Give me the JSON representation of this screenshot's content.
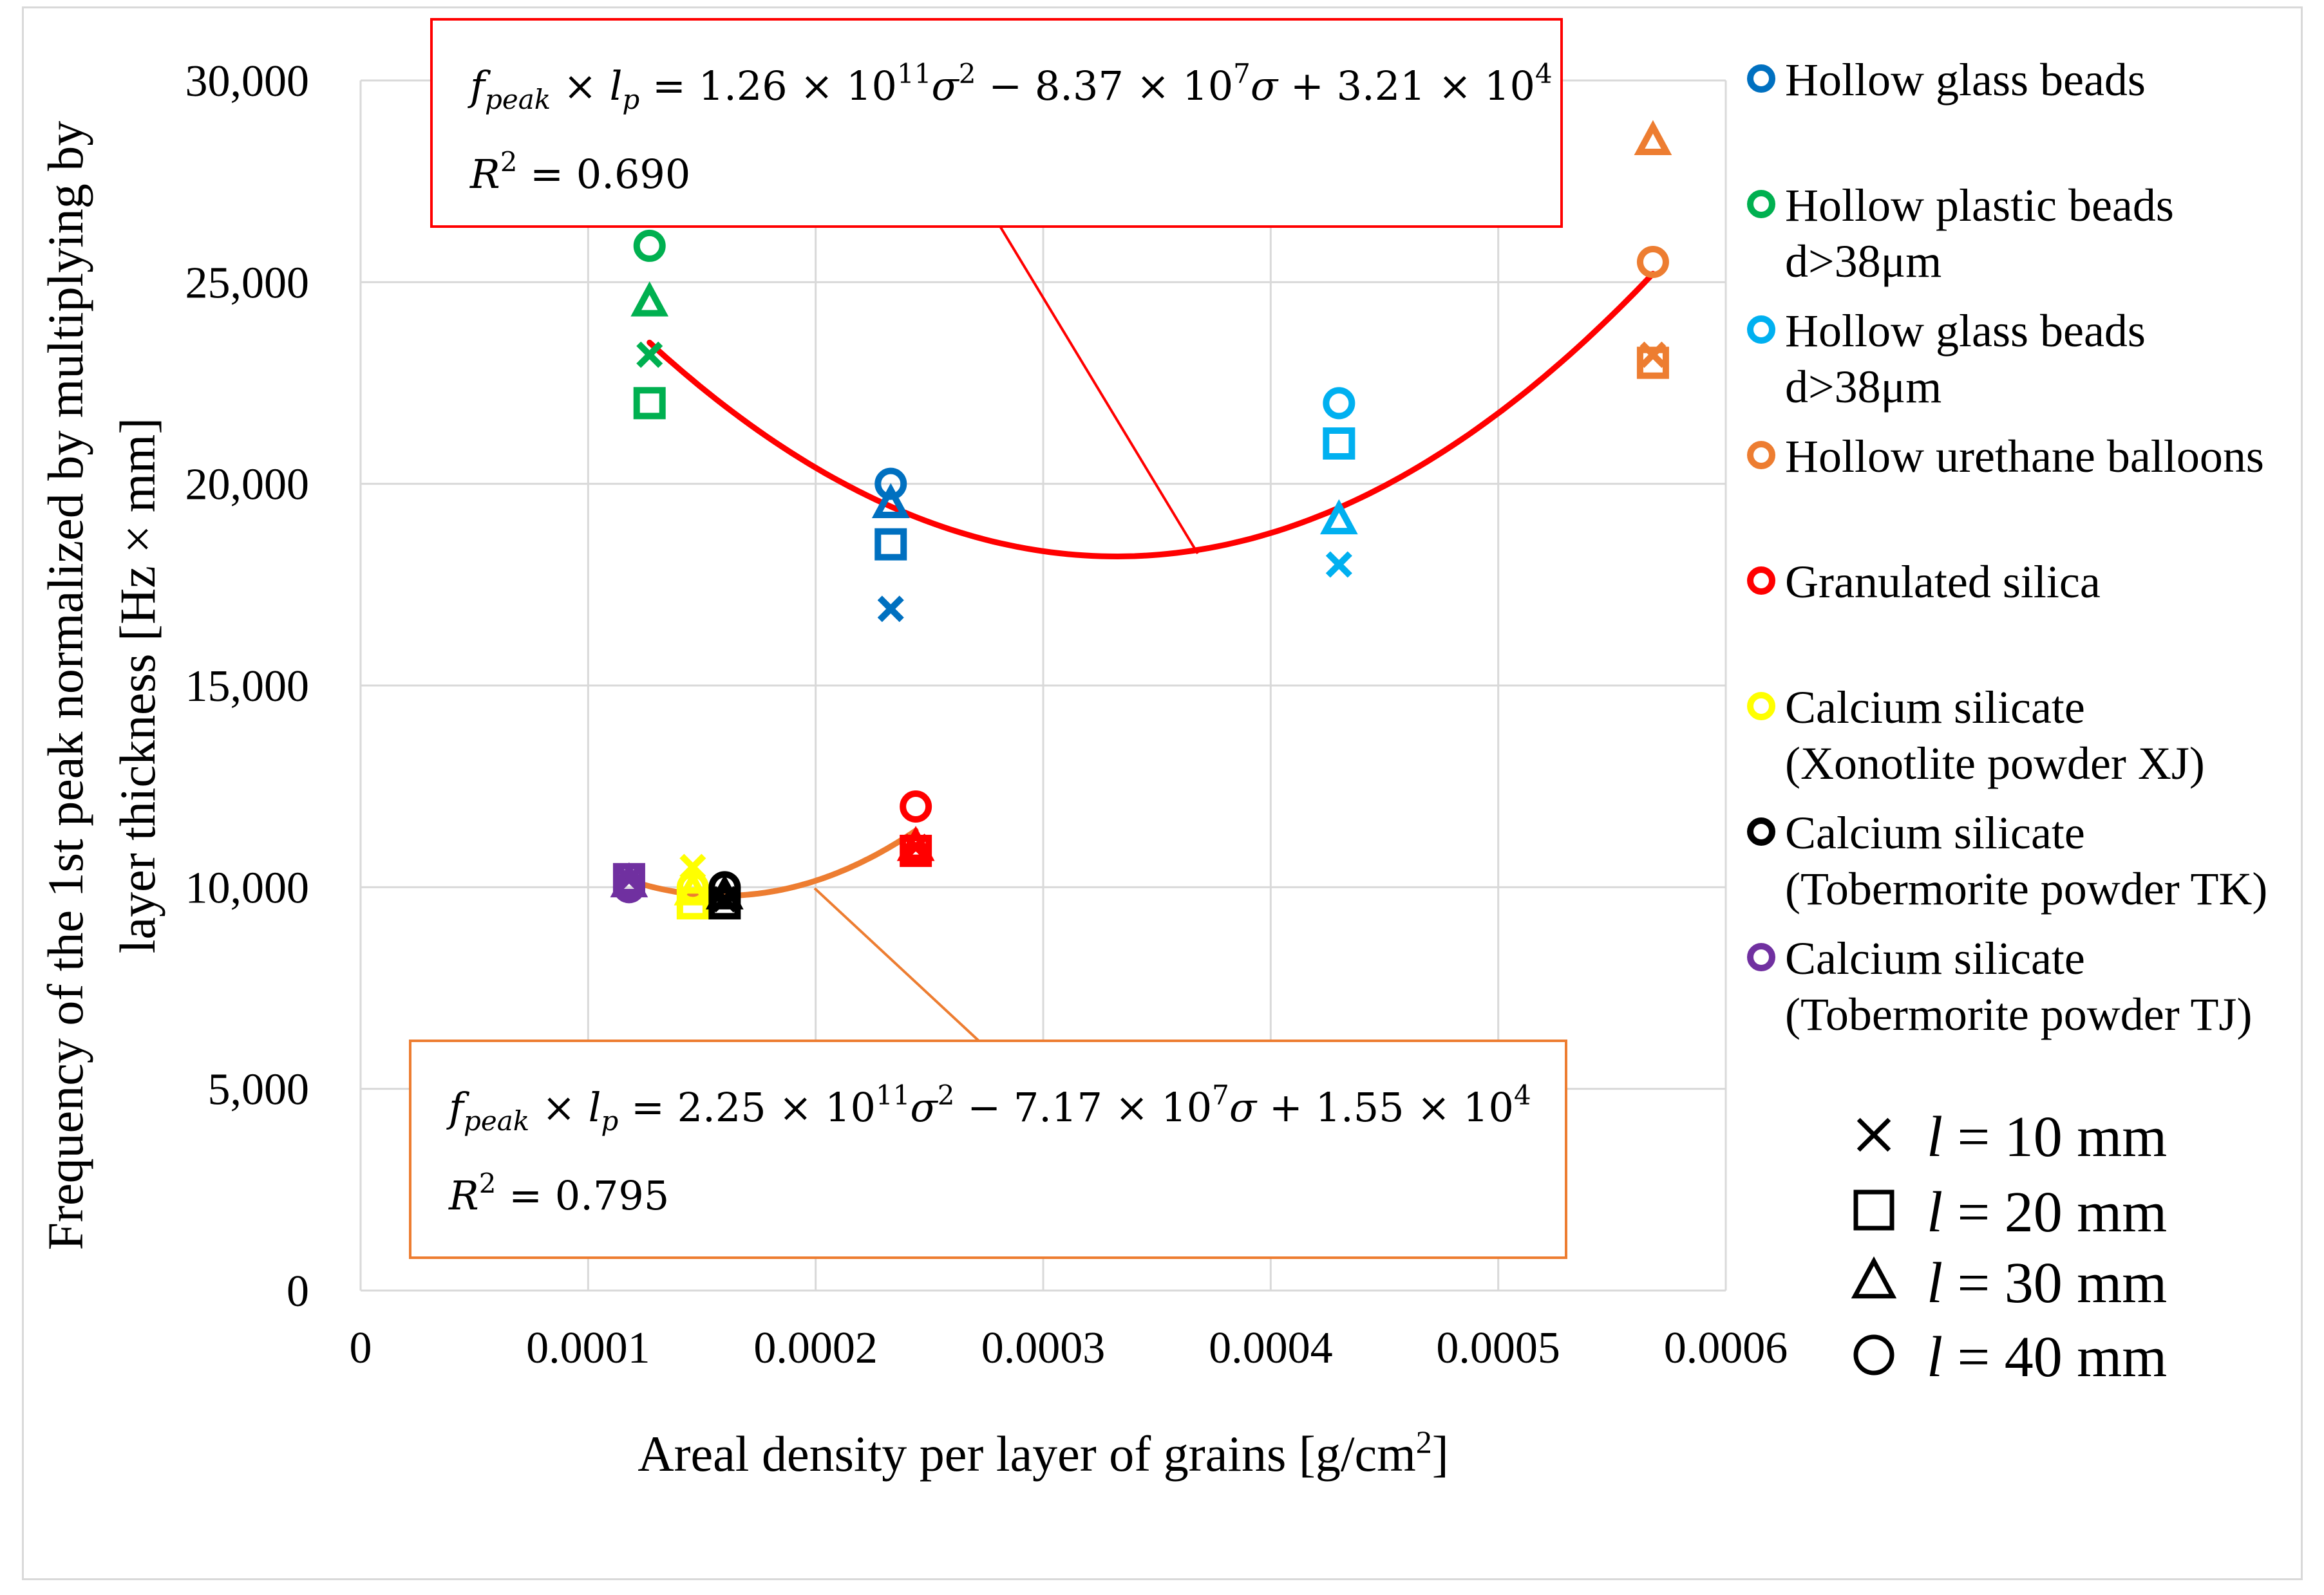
{
  "chart_data": {
    "type": "scatter",
    "title": "",
    "xlabel": "Areal density per layer of grains [g/cm²]",
    "xlabel_parts": {
      "text": "Areal density per layer of grains [g/cm",
      "sup": "2",
      "end": "]"
    },
    "ylabel_line1": "Frequency of the 1st peak normalized by multiplying by",
    "ylabel_line2": "layer thickness [Hz × mm]",
    "xlim": [
      0,
      0.0006
    ],
    "ylim": [
      0,
      30000
    ],
    "x_ticks": [
      0,
      0.0001,
      0.0002,
      0.0003,
      0.0004,
      0.0005,
      0.0006
    ],
    "x_tick_labels": [
      "0",
      "0.0001",
      "0.0002",
      "0.0003",
      "0.0004",
      "0.0005",
      "0.0006"
    ],
    "y_ticks": [
      0,
      5000,
      10000,
      15000,
      20000,
      25000,
      30000
    ],
    "y_tick_labels": [
      "0",
      "5,000",
      "10,000",
      "15,000",
      "20,000",
      "25,000",
      "30,000"
    ],
    "grid": true,
    "legend_position": "right",
    "series": [
      {
        "name": "Hollow glass beads",
        "label_lines": [
          "Hollow glass beads"
        ],
        "color": "#0070C0",
        "points": [
          {
            "x": 0.000233,
            "y": 16900,
            "marker": "x"
          },
          {
            "x": 0.000233,
            "y": 18500,
            "marker": "square"
          },
          {
            "x": 0.000233,
            "y": 19500,
            "marker": "triangle"
          },
          {
            "x": 0.000233,
            "y": 20000,
            "marker": "circle"
          }
        ]
      },
      {
        "name": "Hollow plastic beads d>38μm",
        "label_lines": [
          "Hollow plastic beads",
          "d>38μm"
        ],
        "color": "#00B050",
        "points": [
          {
            "x": 0.000127,
            "y": 23200,
            "marker": "x"
          },
          {
            "x": 0.000127,
            "y": 22000,
            "marker": "square"
          },
          {
            "x": 0.000127,
            "y": 24500,
            "marker": "triangle"
          },
          {
            "x": 0.000127,
            "y": 25900,
            "marker": "circle"
          }
        ]
      },
      {
        "name": "Hollow glass beads d>38μm",
        "label_lines": [
          "Hollow glass beads",
          "d>38μm"
        ],
        "color": "#00B0F0",
        "points": [
          {
            "x": 0.00043,
            "y": 18000,
            "marker": "x"
          },
          {
            "x": 0.00043,
            "y": 21000,
            "marker": "square"
          },
          {
            "x": 0.00043,
            "y": 19100,
            "marker": "triangle"
          },
          {
            "x": 0.00043,
            "y": 22000,
            "marker": "circle"
          }
        ]
      },
      {
        "name": "Hollow urethane balloons",
        "label_lines": [
          "Hollow urethane balloons"
        ],
        "color": "#ED7D31",
        "points": [
          {
            "x": 0.000568,
            "y": 23200,
            "marker": "x"
          },
          {
            "x": 0.000568,
            "y": 23000,
            "marker": "square"
          },
          {
            "x": 0.000568,
            "y": 28500,
            "marker": "triangle"
          },
          {
            "x": 0.000568,
            "y": 25500,
            "marker": "circle"
          }
        ]
      },
      {
        "name": "Granulated silica",
        "label_lines": [
          "Granulated silica"
        ],
        "color": "#FF0000",
        "points": [
          {
            "x": 0.000244,
            "y": 11000,
            "marker": "x"
          },
          {
            "x": 0.000244,
            "y": 10900,
            "marker": "square"
          },
          {
            "x": 0.000244,
            "y": 11000,
            "marker": "triangle"
          },
          {
            "x": 0.000244,
            "y": 12000,
            "marker": "circle"
          }
        ]
      },
      {
        "name": "Calcium silicate (Xonotlite powder XJ)",
        "label_lines": [
          "Calcium silicate",
          "(Xonotlite powder XJ)"
        ],
        "color": "#FFFF00",
        "points": [
          {
            "x": 0.000146,
            "y": 10500,
            "marker": "x"
          },
          {
            "x": 0.000146,
            "y": 9600,
            "marker": "square"
          },
          {
            "x": 0.000146,
            "y": 9900,
            "marker": "triangle"
          },
          {
            "x": 0.000146,
            "y": 10000,
            "marker": "circle"
          }
        ]
      },
      {
        "name": "Calcium silicate (Tobermorite powder TK)",
        "label_lines": [
          "Calcium silicate",
          "(Tobermorite powder TK)"
        ],
        "color": "#000000",
        "points": [
          {
            "x": 0.00016,
            "y": 9700,
            "marker": "x"
          },
          {
            "x": 0.00016,
            "y": 9600,
            "marker": "square"
          },
          {
            "x": 0.00016,
            "y": 9800,
            "marker": "triangle"
          },
          {
            "x": 0.00016,
            "y": 10000,
            "marker": "circle"
          }
        ]
      },
      {
        "name": "Calcium silicate (Tobermorite powder TJ)",
        "label_lines": [
          "Calcium silicate",
          "(Tobermorite powder TJ)"
        ],
        "color": "#7030A0",
        "points": [
          {
            "x": 0.000118,
            "y": 10200,
            "marker": "x"
          },
          {
            "x": 0.000118,
            "y": 10200,
            "marker": "square"
          },
          {
            "x": 0.000118,
            "y": 10100,
            "marker": "triangle"
          },
          {
            "x": 0.000118,
            "y": 10000,
            "marker": "circle"
          }
        ]
      }
    ],
    "fits": [
      {
        "name": "upper-fit",
        "color": "#FF0000",
        "a": 126000000000.0,
        "b": -83700000.0,
        "c": 32100.0,
        "x_range": [
          0.000127,
          0.000568
        ],
        "eq_lhs": "f",
        "eq_sub1": "peak",
        "eq_mid": " × l",
        "eq_sub2": "p",
        "eq_rhs_parts": [
          " = 1.26 × 10",
          "11",
          "σ",
          "2",
          " − 8.37 × 10",
          "7",
          "σ + 3.21 × 10",
          "4"
        ],
        "r2_label": "R",
        "r2_sup": "2",
        "r2_value": " = 0.690"
      },
      {
        "name": "lower-fit",
        "color": "#ED7D31",
        "a": 225000000000.0,
        "b": -71700000.0,
        "c": 15500.0,
        "x_range": [
          0.000118,
          0.000244
        ],
        "eq_lhs": "f",
        "eq_sub1": "peak",
        "eq_mid": " × l",
        "eq_sub2": "p",
        "eq_rhs_parts": [
          " = 2.25 × 10",
          "11",
          "σ",
          "2",
          " − 7.17 × 10",
          "7",
          "σ + 1.55 × 10",
          "4"
        ],
        "r2_label": "R",
        "r2_sup": "2",
        "r2_value": " = 0.795"
      }
    ],
    "marker_legend": [
      {
        "marker": "x",
        "label": "l = 10 mm",
        "var": "l",
        "rest": " = 10 mm"
      },
      {
        "marker": "square",
        "label": "l = 20 mm",
        "var": "l",
        "rest": " = 20 mm"
      },
      {
        "marker": "triangle",
        "label": "l = 30 mm",
        "var": "l",
        "rest": " = 30 mm"
      },
      {
        "marker": "circle",
        "label": "l = 40 mm",
        "var": "l",
        "rest": " = 40 mm"
      }
    ]
  }
}
